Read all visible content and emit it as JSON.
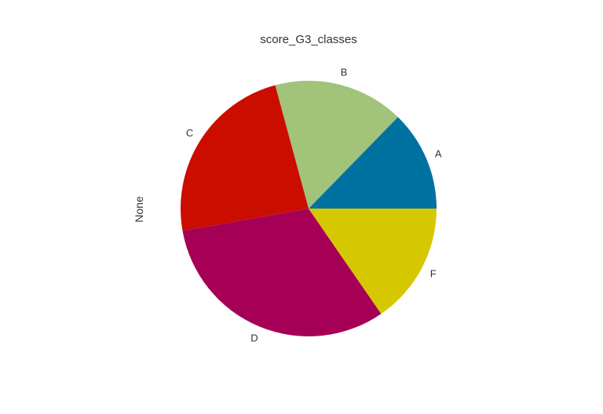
{
  "chart_data": {
    "type": "pie",
    "title": "score_G3_classes",
    "ylabel": "None",
    "categories": [
      "A",
      "B",
      "C",
      "D",
      "F"
    ],
    "values": [
      12.7,
      16.5,
      23.6,
      31.8,
      15.4
    ],
    "colors": [
      "#0072a2",
      "#a1c37a",
      "#cb0d00",
      "#a50055",
      "#d6c800"
    ],
    "start_angle_deg": 0,
    "direction": "counterclockwise",
    "legend": "none"
  }
}
